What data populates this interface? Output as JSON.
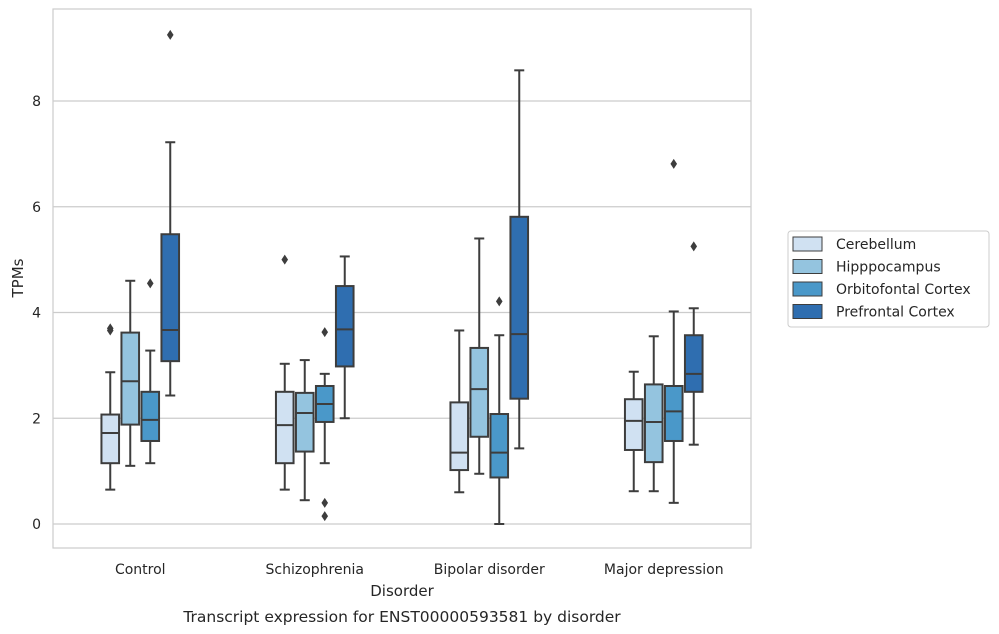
{
  "chart_data": {
    "type": "box",
    "caption": "Transcript expression for ENST00000593581 by disorder",
    "xlabel": "Disorder",
    "ylabel": "TPMs",
    "ylim": [
      -0.45,
      9.75
    ],
    "yticks": [
      0,
      2,
      4,
      6,
      8
    ],
    "grid": "horizontal",
    "legend_position": "right",
    "categories": [
      "Control",
      "Schizophrenia",
      "Bipolar disorder",
      "Major depression"
    ],
    "series": [
      {
        "name": "Cerebellum",
        "color": "#d0e1f2",
        "boxes": [
          {
            "whisker_low": 0.65,
            "q1": 1.15,
            "median": 1.72,
            "q3": 2.07,
            "whisker_high": 2.87,
            "outliers": [
              3.66,
              3.7
            ]
          },
          {
            "whisker_low": 0.65,
            "q1": 1.15,
            "median": 1.87,
            "q3": 2.5,
            "whisker_high": 3.03,
            "outliers": [
              5.0
            ]
          },
          {
            "whisker_low": 0.6,
            "q1": 1.02,
            "median": 1.35,
            "q3": 2.3,
            "whisker_high": 3.66,
            "outliers": []
          },
          {
            "whisker_low": 0.62,
            "q1": 1.4,
            "median": 1.95,
            "q3": 2.36,
            "whisker_high": 2.88,
            "outliers": []
          }
        ]
      },
      {
        "name": "Hipppocampus",
        "color": "#94c4df",
        "boxes": [
          {
            "whisker_low": 1.1,
            "q1": 1.88,
            "median": 2.7,
            "q3": 3.62,
            "whisker_high": 4.6,
            "outliers": []
          },
          {
            "whisker_low": 0.45,
            "q1": 1.37,
            "median": 2.1,
            "q3": 2.48,
            "whisker_high": 3.1,
            "outliers": []
          },
          {
            "whisker_low": 0.95,
            "q1": 1.65,
            "median": 2.55,
            "q3": 3.33,
            "whisker_high": 5.4,
            "outliers": []
          },
          {
            "whisker_low": 0.62,
            "q1": 1.17,
            "median": 1.93,
            "q3": 2.64,
            "whisker_high": 3.55,
            "outliers": []
          }
        ]
      },
      {
        "name": "Orbitofontal Cortex",
        "color": "#4a98c9",
        "boxes": [
          {
            "whisker_low": 1.15,
            "q1": 1.57,
            "median": 1.97,
            "q3": 2.5,
            "whisker_high": 3.28,
            "outliers": [
              4.55
            ]
          },
          {
            "whisker_low": 1.15,
            "q1": 1.93,
            "median": 2.27,
            "q3": 2.61,
            "whisker_high": 2.84,
            "outliers": [
              3.63,
              0.4,
              0.15
            ]
          },
          {
            "whisker_low": 0.0,
            "q1": 0.88,
            "median": 1.35,
            "q3": 2.08,
            "whisker_high": 3.57,
            "outliers": [
              4.21
            ]
          },
          {
            "whisker_low": 0.4,
            "q1": 1.57,
            "median": 2.13,
            "q3": 2.61,
            "whisker_high": 4.02,
            "outliers": [
              6.81
            ]
          }
        ]
      },
      {
        "name": "Prefrontal Cortex",
        "color": "#2f6eb0",
        "boxes": [
          {
            "whisker_low": 2.43,
            "q1": 3.08,
            "median": 3.67,
            "q3": 5.48,
            "whisker_high": 7.22,
            "outliers": [
              9.25
            ]
          },
          {
            "whisker_low": 2.0,
            "q1": 2.98,
            "median": 3.68,
            "q3": 4.5,
            "whisker_high": 5.06,
            "outliers": []
          },
          {
            "whisker_low": 1.43,
            "q1": 2.37,
            "median": 3.59,
            "q3": 5.81,
            "whisker_high": 8.58,
            "outliers": []
          },
          {
            "whisker_low": 1.5,
            "q1": 2.5,
            "median": 2.84,
            "q3": 3.57,
            "whisker_high": 4.08,
            "outliers": [
              5.25
            ]
          }
        ]
      }
    ]
  }
}
